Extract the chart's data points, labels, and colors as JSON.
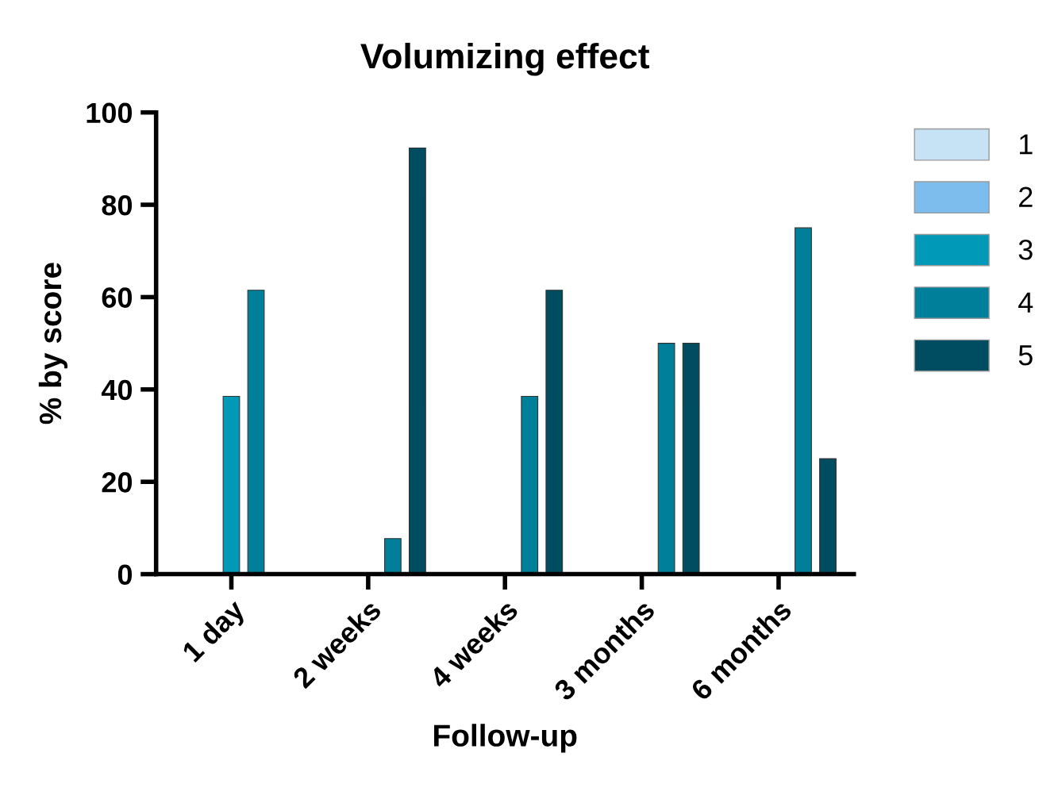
{
  "chart_data": {
    "type": "bar",
    "title": "Volumizing effect",
    "xlabel": "Follow-up",
    "ylabel": "% by score",
    "categories": [
      "1 day",
      "2 weeks",
      "4 weeks",
      "3 months",
      "6 months"
    ],
    "series": [
      {
        "name": "1",
        "color": "#c6e2f5",
        "values": [
          0,
          0,
          0,
          0,
          0
        ]
      },
      {
        "name": "2",
        "color": "#7dbdee",
        "values": [
          0,
          0,
          0,
          0,
          0
        ]
      },
      {
        "name": "3",
        "color": "#0099b8",
        "values": [
          38.5,
          0,
          0,
          0,
          0
        ]
      },
      {
        "name": "4",
        "color": "#007f9a",
        "values": [
          61.5,
          7.7,
          38.5,
          50,
          75
        ]
      },
      {
        "name": "5",
        "color": "#004c60",
        "values": [
          0,
          92.3,
          61.5,
          50,
          25
        ]
      }
    ],
    "ylim": [
      0,
      100
    ],
    "yticks": [
      0,
      20,
      40,
      60,
      80,
      100
    ],
    "grid": false,
    "legend": "right"
  }
}
